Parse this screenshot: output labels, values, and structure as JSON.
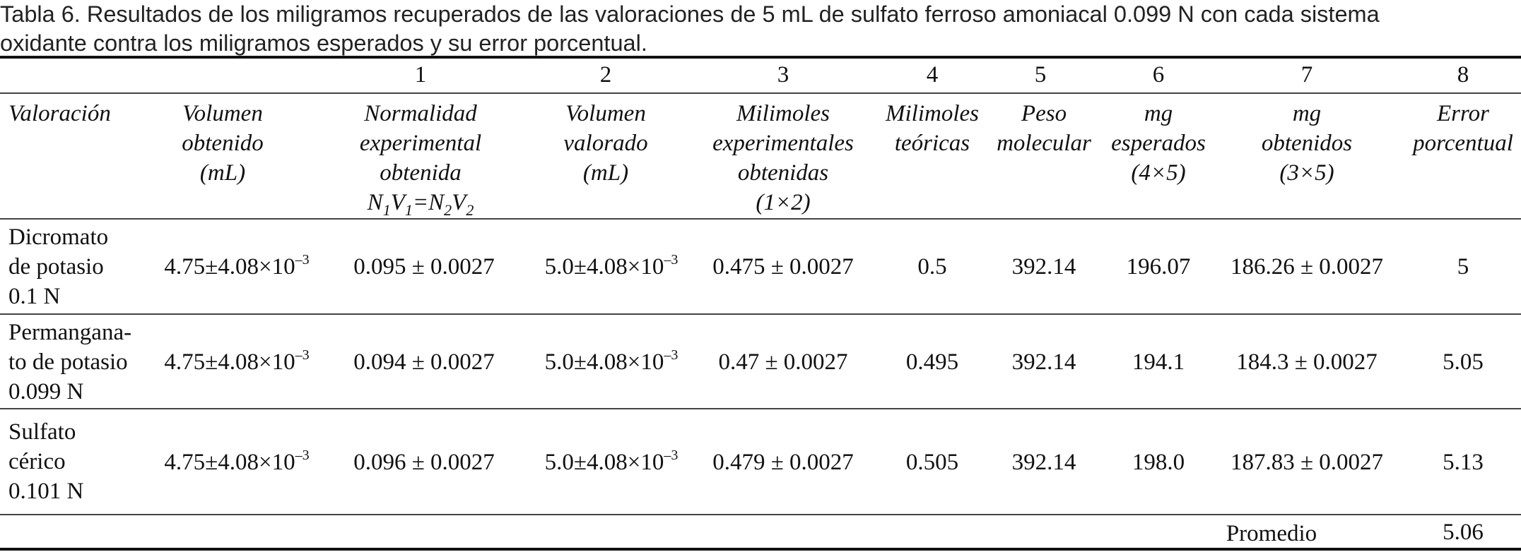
{
  "caption": {
    "label": "Tabla 6.",
    "line1": "Resultados de los miligramos recuperados de las valoraciones de 5 mL de sulfato ferroso amoniacal 0.099 N con cada sistema",
    "line2": "oxidante contra los miligramos esperados y su error porcentual."
  },
  "column_numbers": [
    "1",
    "2",
    "3",
    "4",
    "5",
    "6",
    "7",
    "8"
  ],
  "headers": {
    "valoracion": [
      "Valoración"
    ],
    "volumen_obtenido": [
      "Volumen",
      "obtenido",
      "(mL)"
    ],
    "normalidad": [
      "Normalidad",
      "experimental",
      "obtenida"
    ],
    "normalidad_formula": {
      "n1": "N",
      "s1": "1",
      "v1": "V",
      "s2": "1",
      "eq": "=",
      "n2": "N",
      "s3": "2",
      "v2": "V",
      "s4": "2"
    },
    "volumen_valorado": [
      "Volumen",
      "valorado",
      "(mL)"
    ],
    "milimoles_exp": [
      "Milimoles",
      "experimentales",
      "obtenidas",
      "(1×2)"
    ],
    "milimoles_teo": [
      "Milimoles",
      "teóricas"
    ],
    "peso_molecular": [
      "Peso",
      "molecular"
    ],
    "mg_esperados": [
      "mg",
      "esperados",
      "(4×5)"
    ],
    "mg_obtenidos": [
      "mg",
      "obtenidos",
      "(3×5)"
    ],
    "error": [
      "Error",
      "porcentual"
    ]
  },
  "rows": [
    {
      "name": [
        "Dicromato",
        "de potasio",
        "0.1 N"
      ],
      "vol_obtenido": {
        "base": "4.75±4.08×10",
        "exp": "–3"
      },
      "normalidad": "0.095 ± 0.0027",
      "vol_valorado": {
        "base": "5.0±4.08×10",
        "exp": "–3"
      },
      "milimoles_exp": "0.475 ± 0.0027",
      "milimoles_teo": "0.5",
      "peso": "392.14",
      "mg_esperados": "196.07",
      "mg_obtenidos": "186.26 ± 0.0027",
      "error": "5"
    },
    {
      "name": [
        "Permangana-",
        "to de potasio",
        "0.099 N"
      ],
      "vol_obtenido": {
        "base": "4.75±4.08×10",
        "exp": "–3"
      },
      "normalidad": "0.094 ± 0.0027",
      "vol_valorado": {
        "base": "5.0±4.08×10",
        "exp": "–3"
      },
      "milimoles_exp": "0.47 ± 0.0027",
      "milimoles_teo": "0.495",
      "peso": "392.14",
      "mg_esperados": "194.1",
      "mg_obtenidos": "184.3 ± 0.0027",
      "error": "5.05"
    },
    {
      "name": [
        "Sulfato",
        "cérico",
        "0.101 N"
      ],
      "vol_obtenido": {
        "base": "4.75±4.08×10",
        "exp": "–3"
      },
      "normalidad": "0.096 ± 0.0027",
      "vol_valorado": {
        "base": "5.0±4.08×10",
        "exp": "–3"
      },
      "milimoles_exp": "0.479 ± 0.0027",
      "milimoles_teo": "0.505",
      "peso": "392.14",
      "mg_esperados": "198.0",
      "mg_obtenidos": "187.83 ± 0.0027",
      "error": "5.13"
    }
  ],
  "footer": {
    "label": "Promedio",
    "value": "5.06"
  }
}
